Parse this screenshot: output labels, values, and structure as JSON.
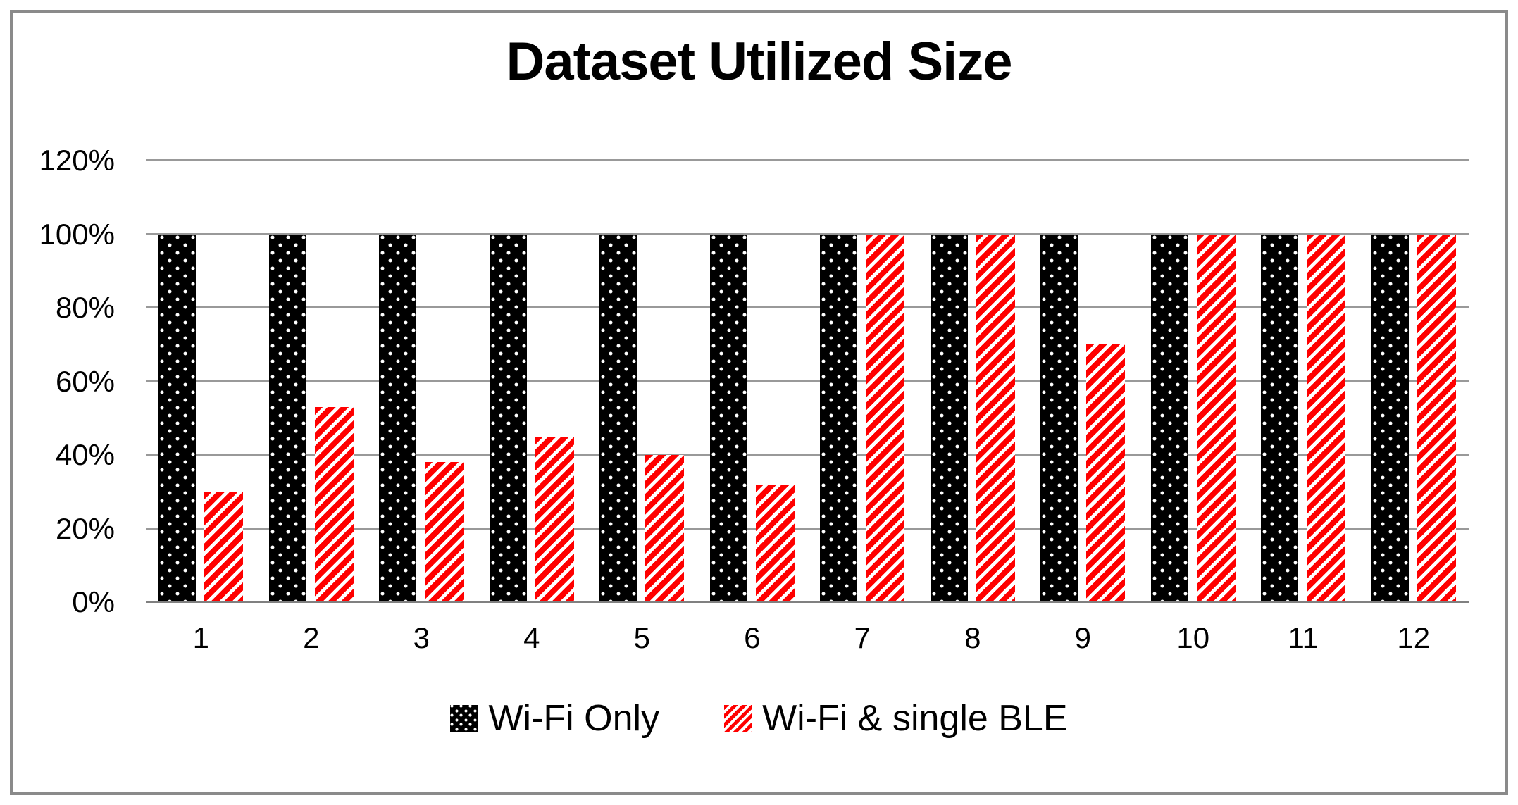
{
  "chart_data": {
    "type": "bar",
    "title": "Dataset Utilized Size",
    "categories": [
      "1",
      "2",
      "3",
      "4",
      "5",
      "6",
      "7",
      "8",
      "9",
      "10",
      "11",
      "12"
    ],
    "series": [
      {
        "name": "Wi-Fi Only",
        "pattern": "black-dots",
        "color": "#000000",
        "values": [
          100,
          100,
          100,
          100,
          100,
          100,
          100,
          100,
          100,
          100,
          100,
          100
        ]
      },
      {
        "name": "Wi-Fi & single BLE",
        "pattern": "red-stripes",
        "color": "#FF0000",
        "values": [
          30,
          53,
          38,
          45,
          40,
          32,
          100,
          100,
          70,
          100,
          100,
          100
        ]
      }
    ],
    "xlabel": "",
    "ylabel": "",
    "ylim": [
      0,
      120
    ],
    "ytick_step": 20,
    "ytick_labels": [
      "0%",
      "20%",
      "40%",
      "60%",
      "80%",
      "100%",
      "120%"
    ],
    "grid": true,
    "legend_position": "bottom"
  },
  "colors": {
    "bar_black": "#000000",
    "bar_red": "#FF0000",
    "gridline": "#999999",
    "axis_line": "#808080",
    "frame_border": "#8A8A8A",
    "text": "#000000"
  }
}
